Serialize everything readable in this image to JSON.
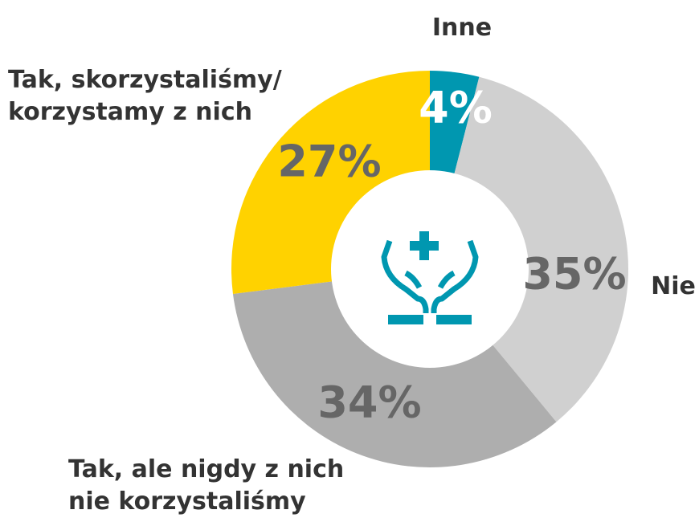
{
  "chart_data": {
    "type": "donut",
    "categories": [
      "Inne",
      "Nie",
      "Tak, ale nigdy z nich\nnie korzystaliśmy",
      "Tak, skorzystaliśmy/\nkorzystamy z nich"
    ],
    "values": [
      4,
      35,
      34,
      27
    ],
    "value_labels": [
      "4%",
      "35%",
      "34%",
      "27%"
    ],
    "colors": [
      "#0097b0",
      "#d0d0d0",
      "#aeaeae",
      "#ffd200"
    ]
  }
}
